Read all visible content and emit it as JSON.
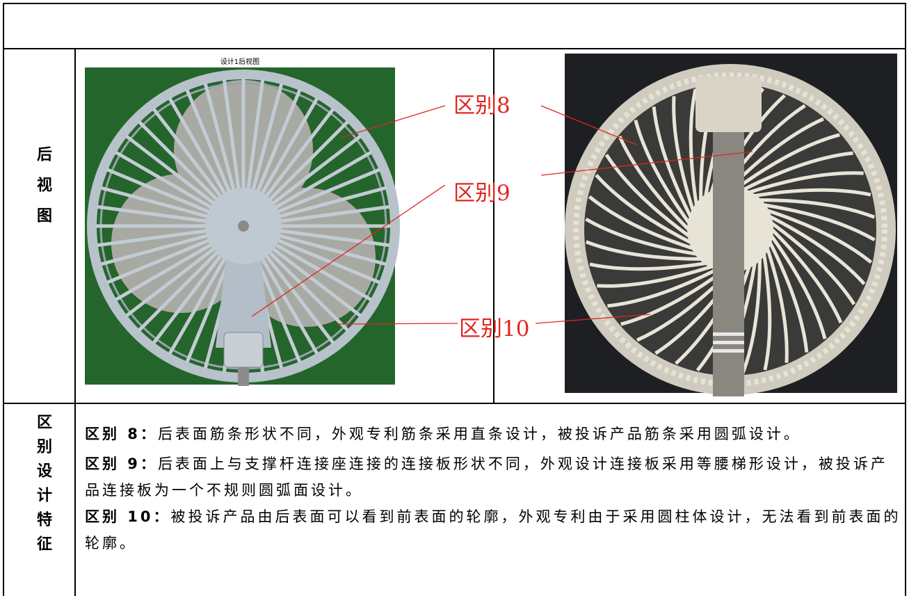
{
  "row_label": "后视图",
  "left_image": {
    "caption": "设计1后视图"
  },
  "annotations": [
    "区别8",
    "区别9",
    "区别10"
  ],
  "section_label": "区别设计特征",
  "differences": [
    {
      "label": "区别 8：",
      "text": "后表面筋条形状不同，外观专利筋条采用直条设计，被投诉产品筋条采用圆弧设计。"
    },
    {
      "label": "区别 9：",
      "text": "后表面上与支撑杆连接座连接的连接板形状不同，外观设计连接板采用等腰梯形设计，被投诉产品连接板为一个不规则圆弧面设计。"
    },
    {
      "label": "区别 10：",
      "text": "被投诉产品由后表面可以看到前表面的轮廓，外观专利由于采用圆柱体设计，无法看到前表面的轮廓。"
    }
  ]
}
